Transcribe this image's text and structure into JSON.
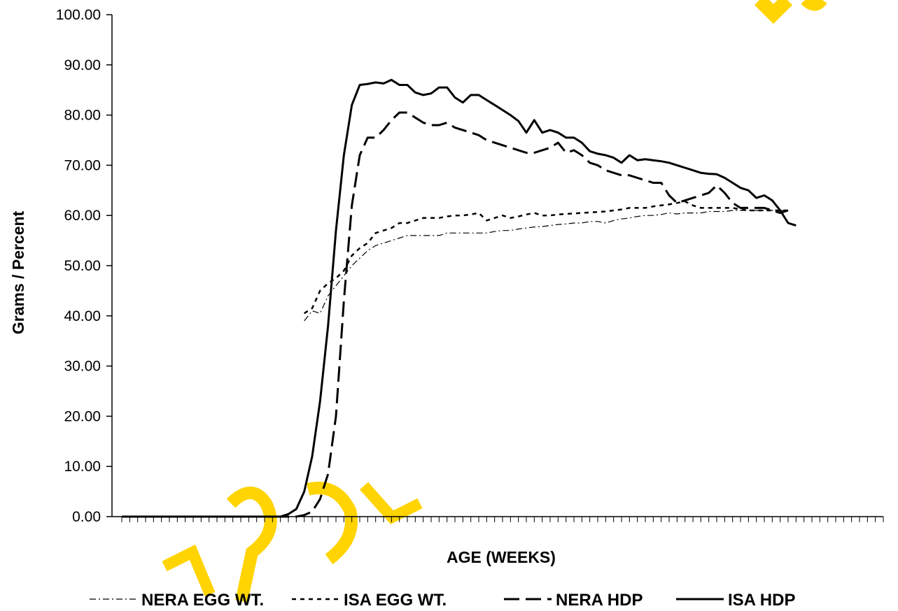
{
  "chart_data": {
    "type": "line",
    "title": "",
    "xlabel": "AGE (WEEKS)",
    "ylabel": "Grams / Percent",
    "ylim": [
      0,
      100
    ],
    "xlim": [
      1,
      97
    ],
    "yticks": [
      "0.00",
      "10.00",
      "20.00",
      "30.00",
      "40.00",
      "50.00",
      "60.00",
      "70.00",
      "80.00",
      "90.00",
      "100.00"
    ],
    "x_tick_labels_shown": false,
    "grid": false,
    "legend_position": "bottom",
    "watermark": "FRESHR",
    "watermark_color": "#ffd400",
    "series": [
      {
        "name": "NERA EGG WT.",
        "style": "dashdot",
        "stroke_width": 1.2,
        "color": "#000000",
        "points": [
          [
            24,
            39
          ],
          [
            25,
            41
          ],
          [
            26,
            40.5
          ],
          [
            27,
            44
          ],
          [
            28,
            46
          ],
          [
            29,
            48
          ],
          [
            30,
            50
          ],
          [
            31,
            51.5
          ],
          [
            32,
            53
          ],
          [
            33,
            54
          ],
          [
            34,
            54.5
          ],
          [
            35,
            55
          ],
          [
            36,
            55.5
          ],
          [
            37,
            56
          ],
          [
            38,
            56
          ],
          [
            39,
            56
          ],
          [
            40,
            56
          ],
          [
            41,
            56
          ],
          [
            42,
            56.5
          ],
          [
            43,
            56.5
          ],
          [
            44,
            56.5
          ],
          [
            45,
            56.5
          ],
          [
            46,
            56.5
          ],
          [
            47,
            56.5
          ],
          [
            48,
            56.8
          ],
          [
            49,
            57
          ],
          [
            50,
            57
          ],
          [
            51,
            57.3
          ],
          [
            52,
            57.5
          ],
          [
            53,
            57.7
          ],
          [
            54,
            57.8
          ],
          [
            55,
            58
          ],
          [
            56,
            58.2
          ],
          [
            57,
            58.3
          ],
          [
            58,
            58.5
          ],
          [
            59,
            58.5
          ],
          [
            60,
            58.8
          ],
          [
            61,
            58.8
          ],
          [
            62,
            58.5
          ],
          [
            63,
            59
          ],
          [
            64,
            59.3
          ],
          [
            65,
            59.5
          ],
          [
            66,
            59.8
          ],
          [
            67,
            60
          ],
          [
            68,
            60
          ],
          [
            69,
            60.2
          ],
          [
            70,
            60.5
          ],
          [
            71,
            60.3
          ],
          [
            72,
            60.5
          ],
          [
            73,
            60.5
          ],
          [
            74,
            60.5
          ],
          [
            75,
            60.8
          ],
          [
            76,
            60.8
          ],
          [
            77,
            60.8
          ],
          [
            78,
            61
          ],
          [
            79,
            61
          ],
          [
            80,
            61
          ],
          [
            81,
            61
          ],
          [
            82,
            61
          ],
          [
            83,
            61
          ],
          [
            84,
            61
          ],
          [
            85,
            61
          ]
        ]
      },
      {
        "name": "ISA EGG WT.",
        "style": "dotted",
        "stroke_width": 2.5,
        "color": "#000000",
        "points": [
          [
            24,
            40.5
          ],
          [
            25,
            41.5
          ],
          [
            26,
            45
          ],
          [
            27,
            46.5
          ],
          [
            28,
            47.5
          ],
          [
            29,
            49
          ],
          [
            30,
            52
          ],
          [
            31,
            53.5
          ],
          [
            32,
            54.5
          ],
          [
            33,
            56.5
          ],
          [
            34,
            57
          ],
          [
            35,
            57.5
          ],
          [
            36,
            58.5
          ],
          [
            37,
            58.5
          ],
          [
            38,
            59
          ],
          [
            39,
            59.5
          ],
          [
            40,
            59.5
          ],
          [
            41,
            59.5
          ],
          [
            42,
            59.8
          ],
          [
            43,
            60
          ],
          [
            44,
            60
          ],
          [
            45,
            60.2
          ],
          [
            46,
            60.5
          ],
          [
            47,
            59
          ],
          [
            48,
            59.5
          ],
          [
            49,
            60
          ],
          [
            50,
            59.5
          ],
          [
            51,
            59.8
          ],
          [
            52,
            60.2
          ],
          [
            53,
            60.5
          ],
          [
            54,
            60
          ],
          [
            55,
            60
          ],
          [
            56,
            60.2
          ],
          [
            57,
            60.3
          ],
          [
            58,
            60.4
          ],
          [
            59,
            60.5
          ],
          [
            60,
            60.6
          ],
          [
            61,
            60.7
          ],
          [
            62,
            60.8
          ],
          [
            63,
            61
          ],
          [
            64,
            61.2
          ],
          [
            65,
            61.5
          ],
          [
            66,
            61.5
          ],
          [
            67,
            61.5
          ],
          [
            68,
            61.8
          ],
          [
            69,
            62
          ],
          [
            70,
            62.2
          ],
          [
            71,
            62.5
          ],
          [
            72,
            62.8
          ],
          [
            73,
            62
          ],
          [
            74,
            61.5
          ],
          [
            75,
            61.5
          ],
          [
            76,
            61.5
          ],
          [
            77,
            61.5
          ],
          [
            78,
            61.5
          ],
          [
            79,
            61.2
          ],
          [
            80,
            61
          ],
          [
            81,
            61
          ],
          [
            82,
            61
          ],
          [
            83,
            61
          ],
          [
            84,
            61
          ],
          [
            85,
            61
          ]
        ]
      },
      {
        "name": "NERA HDP",
        "style": "dashed",
        "stroke_width": 3,
        "color": "#000000",
        "points": [
          [
            1,
            0
          ],
          [
            2,
            0
          ],
          [
            3,
            0
          ],
          [
            4,
            0
          ],
          [
            5,
            0
          ],
          [
            6,
            0
          ],
          [
            7,
            0
          ],
          [
            8,
            0
          ],
          [
            9,
            0
          ],
          [
            10,
            0
          ],
          [
            11,
            0
          ],
          [
            12,
            0
          ],
          [
            13,
            0
          ],
          [
            14,
            0
          ],
          [
            15,
            0
          ],
          [
            16,
            0
          ],
          [
            17,
            0
          ],
          [
            18,
            0
          ],
          [
            19,
            0
          ],
          [
            20,
            0
          ],
          [
            21,
            0
          ],
          [
            22,
            0
          ],
          [
            23,
            0
          ],
          [
            24,
            0.3
          ],
          [
            25,
            1
          ],
          [
            26,
            3.5
          ],
          [
            27,
            8.5
          ],
          [
            28,
            20
          ],
          [
            29,
            43
          ],
          [
            30,
            62
          ],
          [
            31,
            72
          ],
          [
            32,
            75.5
          ],
          [
            33,
            75.5
          ],
          [
            34,
            77
          ],
          [
            35,
            79
          ],
          [
            36,
            80.5
          ],
          [
            37,
            80.5
          ],
          [
            38,
            79.5
          ],
          [
            39,
            78.5
          ],
          [
            40,
            78
          ],
          [
            41,
            78
          ],
          [
            42,
            78.5
          ],
          [
            43,
            77.5
          ],
          [
            44,
            77
          ],
          [
            45,
            76.5
          ],
          [
            46,
            76
          ],
          [
            47,
            75
          ],
          [
            48,
            74.5
          ],
          [
            49,
            74
          ],
          [
            50,
            73.5
          ],
          [
            51,
            73
          ],
          [
            52,
            72.5
          ],
          [
            53,
            72.5
          ],
          [
            54,
            73
          ],
          [
            55,
            73.5
          ],
          [
            56,
            74.5
          ],
          [
            57,
            72.5
          ],
          [
            58,
            73
          ],
          [
            59,
            72
          ],
          [
            60,
            70.5
          ],
          [
            61,
            70
          ],
          [
            62,
            69
          ],
          [
            63,
            68.5
          ],
          [
            64,
            68
          ],
          [
            65,
            68
          ],
          [
            66,
            67.5
          ],
          [
            67,
            67
          ],
          [
            68,
            66.5
          ],
          [
            69,
            66.5
          ],
          [
            70,
            64
          ],
          [
            71,
            62.5
          ],
          [
            72,
            63
          ],
          [
            73,
            63.5
          ],
          [
            74,
            64
          ],
          [
            75,
            64.5
          ],
          [
            76,
            66
          ],
          [
            77,
            64.5
          ],
          [
            78,
            62.5
          ],
          [
            79,
            61.5
          ],
          [
            80,
            61.5
          ],
          [
            81,
            61.5
          ],
          [
            82,
            61.5
          ],
          [
            83,
            61
          ],
          [
            84,
            60.5
          ],
          [
            85,
            61
          ]
        ]
      },
      {
        "name": "ISA HDP",
        "style": "solid",
        "stroke_width": 3,
        "color": "#000000",
        "points": [
          [
            1,
            0
          ],
          [
            2,
            0
          ],
          [
            3,
            0
          ],
          [
            4,
            0
          ],
          [
            5,
            0
          ],
          [
            6,
            0
          ],
          [
            7,
            0
          ],
          [
            8,
            0
          ],
          [
            9,
            0
          ],
          [
            10,
            0
          ],
          [
            11,
            0
          ],
          [
            12,
            0
          ],
          [
            13,
            0
          ],
          [
            14,
            0
          ],
          [
            15,
            0
          ],
          [
            16,
            0
          ],
          [
            17,
            0
          ],
          [
            18,
            0
          ],
          [
            19,
            0
          ],
          [
            20,
            0
          ],
          [
            21,
            0
          ],
          [
            22,
            0.5
          ],
          [
            23,
            1.5
          ],
          [
            24,
            5
          ],
          [
            25,
            12
          ],
          [
            26,
            23
          ],
          [
            27,
            38
          ],
          [
            28,
            57
          ],
          [
            29,
            72
          ],
          [
            30,
            82
          ],
          [
            31,
            86
          ],
          [
            32,
            86.2
          ],
          [
            33,
            86.5
          ],
          [
            34,
            86.3
          ],
          [
            35,
            87
          ],
          [
            36,
            86
          ],
          [
            37,
            86
          ],
          [
            38,
            84.5
          ],
          [
            39,
            84
          ],
          [
            40,
            84.3
          ],
          [
            41,
            85.5
          ],
          [
            42,
            85.5
          ],
          [
            43,
            83.5
          ],
          [
            44,
            82.5
          ],
          [
            45,
            84
          ],
          [
            46,
            84
          ],
          [
            47,
            83
          ],
          [
            48,
            82
          ],
          [
            49,
            81
          ],
          [
            50,
            80
          ],
          [
            51,
            78.8
          ],
          [
            52,
            76.5
          ],
          [
            53,
            79
          ],
          [
            54,
            76.5
          ],
          [
            55,
            77
          ],
          [
            56,
            76.5
          ],
          [
            57,
            75.5
          ],
          [
            58,
            75.5
          ],
          [
            59,
            74.5
          ],
          [
            60,
            72.8
          ],
          [
            61,
            72.3
          ],
          [
            62,
            72
          ],
          [
            63,
            71.5
          ],
          [
            64,
            70.5
          ],
          [
            65,
            72
          ],
          [
            66,
            71
          ],
          [
            67,
            71.2
          ],
          [
            68,
            71
          ],
          [
            69,
            70.8
          ],
          [
            70,
            70.5
          ],
          [
            71,
            70
          ],
          [
            72,
            69.5
          ],
          [
            73,
            69
          ],
          [
            74,
            68.5
          ],
          [
            75,
            68.3
          ],
          [
            76,
            68.2
          ],
          [
            77,
            67.5
          ],
          [
            78,
            66.5
          ],
          [
            79,
            65.5
          ],
          [
            80,
            65
          ],
          [
            81,
            63.5
          ],
          [
            82,
            64
          ],
          [
            83,
            63
          ],
          [
            84,
            61
          ],
          [
            85,
            58.5
          ],
          [
            86,
            58
          ]
        ]
      }
    ]
  }
}
